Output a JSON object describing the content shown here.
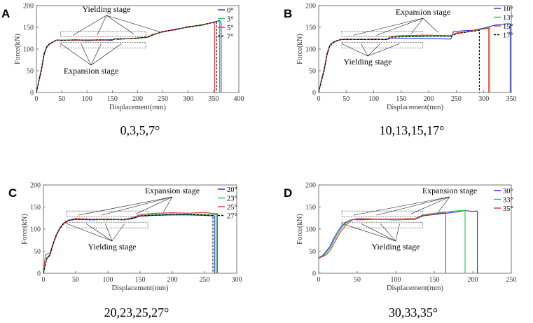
{
  "figure": {
    "panel_count": 4
  },
  "chart_data": [
    {
      "type": "line",
      "panel": "A",
      "caption": "0,3,5,7°",
      "xlabel": "Displacement(mm)",
      "ylabel": "Force(kN)",
      "xlim": [
        0,
        400
      ],
      "ylim": [
        0,
        200
      ],
      "xticks": [
        "0",
        "50",
        "100",
        "150",
        "200",
        "250",
        "300",
        "350",
        "400"
      ],
      "yticks": [
        "0",
        "50",
        "100",
        "150",
        "200"
      ],
      "annotations": {
        "upper": "Yielding stage",
        "lower": "Expansion stage"
      },
      "series": [
        {
          "name": "0°",
          "color": "#1f2bd6",
          "dash": "",
          "x": [
            0,
            5,
            10,
            15,
            20,
            25,
            30,
            40,
            50,
            75,
            100,
            125,
            150,
            155,
            160,
            200,
            220,
            230,
            250,
            275,
            300,
            325,
            350,
            362,
            365,
            365
          ],
          "y": [
            0,
            30,
            55,
            90,
            105,
            112,
            115,
            121,
            120,
            121,
            119,
            121,
            120,
            124,
            123,
            125,
            127,
            133,
            140,
            146,
            150,
            155,
            162,
            166,
            160,
            0
          ]
        },
        {
          "name": "3°",
          "color": "#19c94a",
          "dash": "",
          "x": [
            0,
            5,
            10,
            15,
            20,
            25,
            30,
            40,
            50,
            75,
            100,
            125,
            150,
            155,
            160,
            200,
            220,
            230,
            250,
            275,
            300,
            325,
            350,
            360,
            362,
            362
          ],
          "y": [
            0,
            28,
            52,
            88,
            104,
            111,
            115,
            121,
            119,
            122,
            120,
            122,
            121,
            123,
            124,
            124,
            128,
            134,
            139,
            145,
            151,
            156,
            161,
            164,
            160,
            0
          ]
        },
        {
          "name": "5°",
          "color": "#e0322e",
          "dash": "",
          "x": [
            0,
            5,
            10,
            15,
            20,
            25,
            30,
            40,
            50,
            75,
            100,
            125,
            150,
            155,
            160,
            200,
            220,
            230,
            250,
            275,
            300,
            325,
            345,
            352,
            352
          ],
          "y": [
            0,
            26,
            50,
            85,
            103,
            110,
            114,
            120,
            121,
            120,
            121,
            120,
            122,
            124,
            122,
            126,
            127,
            132,
            141,
            144,
            152,
            154,
            160,
            161,
            0
          ]
        },
        {
          "name": "7°",
          "color": "#000000",
          "dash": "3,2",
          "x": [
            0,
            5,
            10,
            15,
            20,
            25,
            30,
            40,
            50,
            75,
            100,
            125,
            150,
            155,
            160,
            200,
            220,
            230,
            250,
            275,
            300,
            325,
            348,
            356,
            356
          ],
          "y": [
            0,
            27,
            53,
            87,
            104,
            111,
            115,
            121,
            120,
            121,
            121,
            121,
            121,
            123,
            123,
            125,
            128,
            133,
            140,
            145,
            151,
            155,
            161,
            162,
            0
          ]
        }
      ]
    },
    {
      "type": "line",
      "panel": "B",
      "caption": "10,13,15,17°",
      "xlabel": "Displacement(mm)",
      "ylabel": "Force(kN)",
      "xlim": [
        0,
        350
      ],
      "ylim": [
        0,
        200
      ],
      "xticks": [
        "0",
        "50",
        "100",
        "150",
        "200",
        "250",
        "300",
        "350"
      ],
      "yticks": [
        "0",
        "50",
        "100",
        "150",
        "200"
      ],
      "annotations": {
        "upper": "Expansion stage",
        "lower": "Yielding stage"
      },
      "series": [
        {
          "name": "10°",
          "color": "#1f2bd6",
          "dash": "",
          "x": [
            0,
            5,
            10,
            15,
            20,
            25,
            30,
            40,
            50,
            75,
            100,
            125,
            130,
            150,
            200,
            240,
            245,
            260,
            280,
            300,
            320,
            340,
            348,
            348
          ],
          "y": [
            0,
            30,
            55,
            90,
            108,
            115,
            118,
            122,
            123,
            122,
            123,
            122,
            125,
            125,
            124,
            123,
            140,
            142,
            143,
            148,
            155,
            158,
            158,
            0
          ]
        },
        {
          "name": "13°",
          "color": "#19c94a",
          "dash": "",
          "x": [
            0,
            5,
            10,
            15,
            20,
            25,
            30,
            40,
            50,
            75,
            100,
            125,
            130,
            150,
            200,
            240,
            250,
            270,
            290,
            305,
            311,
            311
          ],
          "y": [
            0,
            28,
            53,
            88,
            107,
            114,
            118,
            122,
            122,
            123,
            122,
            123,
            128,
            129,
            130,
            130,
            136,
            140,
            144,
            148,
            149,
            0
          ]
        },
        {
          "name": "15°",
          "color": "#e0322e",
          "dash": "",
          "x": [
            0,
            5,
            10,
            15,
            20,
            25,
            30,
            40,
            50,
            75,
            100,
            125,
            130,
            150,
            200,
            240,
            250,
            270,
            290,
            305,
            309,
            309
          ],
          "y": [
            0,
            26,
            50,
            85,
            106,
            113,
            117,
            121,
            123,
            122,
            123,
            122,
            129,
            131,
            132,
            131,
            137,
            140,
            145,
            147,
            148,
            0
          ]
        },
        {
          "name": "17°",
          "color": "#000000",
          "dash": "3,2",
          "x": [
            0,
            5,
            10,
            15,
            20,
            25,
            30,
            40,
            50,
            75,
            100,
            125,
            130,
            150,
            200,
            240,
            250,
            270,
            287,
            292,
            292
          ],
          "y": [
            0,
            27,
            52,
            87,
            107,
            114,
            118,
            122,
            122,
            122,
            122,
            122,
            127,
            128,
            129,
            129,
            135,
            139,
            142,
            143,
            0
          ]
        }
      ]
    },
    {
      "type": "line",
      "panel": "C",
      "caption": "20,23,25,27°",
      "xlabel": "Displacement(mm)",
      "ylabel": "Force(kN)",
      "xlim": [
        0,
        300
      ],
      "ylim": [
        0,
        200
      ],
      "xticks": [
        "0",
        "50",
        "100",
        "150",
        "200",
        "250",
        "300"
      ],
      "yticks": [
        "0",
        "50",
        "100",
        "150",
        "200"
      ],
      "annotations": {
        "upper": "Expansion stage",
        "lower": "Yielding stage"
      },
      "series": [
        {
          "name": "20°",
          "color": "#1f2bd6",
          "dash": "",
          "x": [
            0,
            5,
            10,
            15,
            20,
            25,
            30,
            35,
            40,
            50,
            75,
            100,
            125,
            140,
            150,
            175,
            200,
            225,
            250,
            262,
            266,
            266
          ],
          "y": [
            0,
            32,
            40,
            65,
            85,
            100,
            110,
            116,
            120,
            122,
            121,
            122,
            121,
            124,
            130,
            131,
            132,
            132,
            131,
            130,
            130,
            0
          ]
        },
        {
          "name": "23°",
          "color": "#19c94a",
          "dash": "",
          "x": [
            0,
            5,
            10,
            15,
            20,
            25,
            30,
            35,
            40,
            50,
            75,
            100,
            125,
            140,
            150,
            175,
            200,
            225,
            250,
            265,
            269,
            269
          ],
          "y": [
            0,
            35,
            42,
            67,
            87,
            101,
            111,
            117,
            121,
            123,
            122,
            121,
            122,
            125,
            131,
            133,
            134,
            134,
            134,
            133,
            133,
            0
          ]
        },
        {
          "name": "25°",
          "color": "#e0322e",
          "dash": "",
          "x": [
            0,
            3,
            6,
            10,
            15,
            20,
            25,
            30,
            35,
            40,
            50,
            75,
            100,
            125,
            140,
            150,
            175,
            200,
            225,
            250,
            265,
            270,
            270
          ],
          "y": [
            0,
            42,
            44,
            45,
            68,
            88,
            102,
            112,
            118,
            121,
            124,
            122,
            123,
            121,
            127,
            133,
            136,
            137,
            136,
            138,
            135,
            135,
            0
          ]
        },
        {
          "name": "27°",
          "color": "#000000",
          "dash": "3,2",
          "x": [
            0,
            5,
            10,
            15,
            20,
            25,
            30,
            35,
            40,
            50,
            75,
            100,
            125,
            140,
            150,
            175,
            200,
            225,
            250,
            260,
            263,
            263
          ],
          "y": [
            0,
            33,
            41,
            66,
            86,
            100,
            110,
            116,
            120,
            122,
            122,
            122,
            122,
            125,
            130,
            132,
            133,
            133,
            132,
            131,
            131,
            0
          ]
        }
      ]
    },
    {
      "type": "line",
      "panel": "D",
      "caption": "30,33,35°",
      "xlabel": "Displacement(mm)",
      "ylabel": "Force(kN)",
      "xlim": [
        0,
        250
      ],
      "ylim": [
        0,
        200
      ],
      "xticks": [
        "0",
        "50",
        "100",
        "150",
        "200",
        "250"
      ],
      "yticks": [
        "0",
        "50",
        "100",
        "150",
        "200"
      ],
      "annotations": {
        "upper": "Expansion stage",
        "lower": "Yielding stage"
      },
      "series": [
        {
          "name": "30°",
          "color": "#1f2bd6",
          "dash": "",
          "x": [
            0,
            5,
            10,
            15,
            20,
            25,
            30,
            35,
            40,
            45,
            50,
            75,
            100,
            125,
            135,
            150,
            175,
            190,
            200,
            205,
            206,
            206
          ],
          "y": [
            35,
            40,
            50,
            62,
            80,
            95,
            108,
            115,
            120,
            122,
            121,
            122,
            121,
            122,
            130,
            133,
            138,
            142,
            140,
            141,
            140,
            0
          ]
        },
        {
          "name": "33°",
          "color": "#19c94a",
          "dash": "",
          "x": [
            0,
            5,
            10,
            15,
            20,
            25,
            30,
            35,
            40,
            45,
            50,
            75,
            100,
            125,
            135,
            150,
            170,
            185,
            190,
            190
          ],
          "y": [
            33,
            38,
            46,
            58,
            75,
            90,
            104,
            113,
            119,
            122,
            123,
            122,
            121,
            123,
            132,
            136,
            140,
            142,
            142,
            0
          ]
        },
        {
          "name": "35°",
          "color": "#e0322e",
          "dash": "",
          "x": [
            0,
            5,
            10,
            15,
            20,
            25,
            30,
            35,
            40,
            45,
            50,
            75,
            100,
            125,
            135,
            150,
            160,
            165,
            165
          ],
          "y": [
            35,
            38,
            42,
            52,
            68,
            84,
            98,
            108,
            116,
            122,
            124,
            123,
            123,
            124,
            131,
            134,
            137,
            137,
            0
          ]
        }
      ]
    }
  ]
}
